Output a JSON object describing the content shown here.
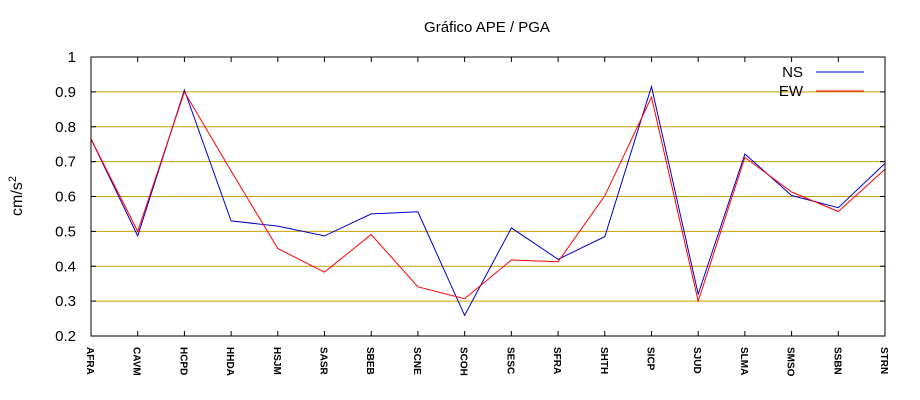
{
  "chart_data": {
    "type": "line",
    "title": "Gráfico  APE / PGA",
    "ylabel": "cm/s",
    "ylabel_sup": "2",
    "xlabel": "",
    "ylim": [
      0.2,
      1.0
    ],
    "yticks": [
      "0.2",
      "0.3",
      "0.4",
      "0.5",
      "0.6",
      "0.7",
      "0.8",
      "0.9",
      "1"
    ],
    "ytick_values": [
      0.2,
      0.3,
      0.4,
      0.5,
      0.6,
      0.7,
      0.8,
      0.9,
      1.0
    ],
    "grid": "horizontal",
    "grid_color": "#c8a000",
    "legend_position": "top-right",
    "categories": [
      "AFRA",
      "CAVM",
      "HCPD",
      "HHDA",
      "HSJM",
      "SASR",
      "SBEB",
      "SCNE",
      "SCOH",
      "SESC",
      "SFRA",
      "SHTH",
      "SICP",
      "SJUD",
      "SLMA",
      "SMSO",
      "SSBN",
      "STRN"
    ],
    "series": [
      {
        "name": "NS",
        "color": "#0000cc",
        "values": [
          0.765,
          0.487,
          0.905,
          0.53,
          0.515,
          0.487,
          0.55,
          0.556,
          0.259,
          0.51,
          0.42,
          0.485,
          0.915,
          0.32,
          0.722,
          0.603,
          0.568,
          0.695
        ]
      },
      {
        "name": "EW",
        "color": "#ff0000",
        "values": [
          0.765,
          0.5,
          0.9,
          0.673,
          0.451,
          0.383,
          0.491,
          0.341,
          0.307,
          0.418,
          0.413,
          0.602,
          0.885,
          0.3,
          0.712,
          0.613,
          0.557,
          0.678
        ]
      }
    ]
  }
}
